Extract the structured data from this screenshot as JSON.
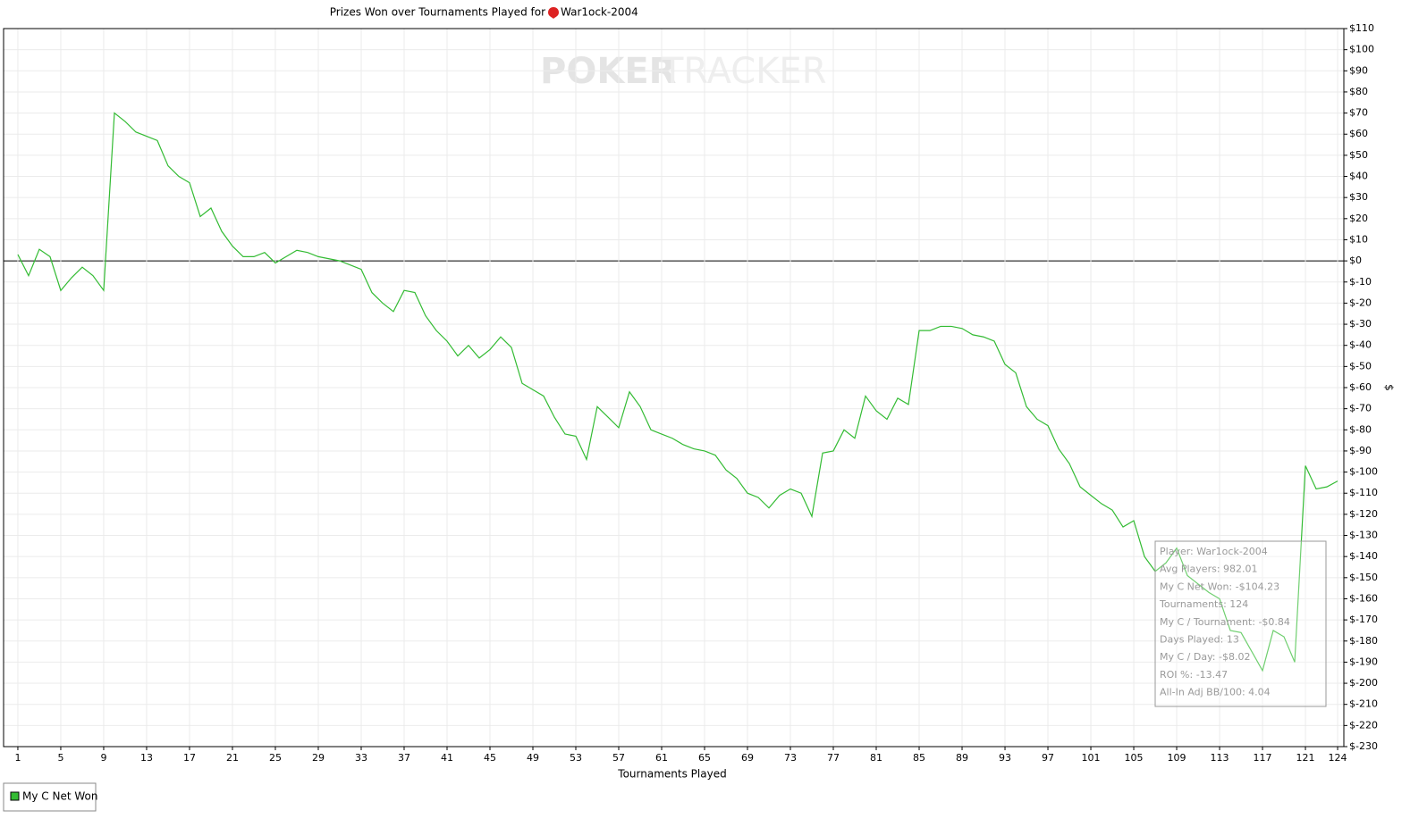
{
  "chart_data": {
    "type": "line",
    "title": "Prizes Won over Tournaments Played for",
    "player": "War1ock-2004",
    "watermark": [
      "POKER",
      "TRACKER"
    ],
    "x_label": "Tournaments Played",
    "y_label": "$",
    "x": [
      1,
      2,
      3,
      4,
      5,
      6,
      7,
      8,
      9,
      10,
      11,
      12,
      13,
      14,
      15,
      16,
      17,
      18,
      19,
      20,
      21,
      22,
      23,
      24,
      25,
      26,
      27,
      28,
      29,
      30,
      31,
      32,
      33,
      34,
      35,
      36,
      37,
      38,
      39,
      40,
      41,
      42,
      43,
      44,
      45,
      46,
      47,
      48,
      49,
      50,
      51,
      52,
      53,
      54,
      55,
      56,
      57,
      58,
      59,
      60,
      61,
      62,
      63,
      64,
      65,
      66,
      67,
      68,
      69,
      70,
      71,
      72,
      73,
      74,
      75,
      76,
      77,
      78,
      79,
      80,
      81,
      82,
      83,
      84,
      85,
      86,
      87,
      88,
      89,
      90,
      91,
      92,
      93,
      94,
      95,
      96,
      97,
      98,
      99,
      100,
      101,
      102,
      103,
      104,
      105,
      106,
      107,
      108,
      109,
      110,
      111,
      112,
      113,
      114,
      115,
      116,
      117,
      118,
      119,
      120,
      121,
      122,
      123,
      124
    ],
    "series": [
      {
        "name": "My C Net Won",
        "color": "#33bb33",
        "values": [
          3,
          -7,
          5.5,
          2,
          -14,
          -8,
          -3,
          -7,
          -14,
          70,
          66,
          61,
          59,
          57,
          45,
          40,
          37,
          21,
          25,
          14,
          7,
          2,
          2,
          4,
          -1,
          2,
          5,
          4,
          2,
          1,
          0,
          -2,
          -4,
          -15,
          -20,
          -24,
          -14,
          -15,
          -26,
          -33,
          -38,
          -45,
          -40,
          -46,
          -42,
          -36,
          -41,
          -58,
          -61,
          -64,
          -74,
          -82,
          -83,
          -94,
          -69,
          -74,
          -79,
          -62,
          -69,
          -80,
          -82,
          -84,
          -87,
          -89,
          -90,
          -92,
          -99,
          -103,
          -110,
          -112,
          -117,
          -111,
          -108,
          -110,
          -121,
          -91,
          -90,
          -80,
          -84,
          -64,
          -71,
          -75,
          -65,
          -68,
          -33,
          -33,
          -31,
          -31,
          -32,
          -35,
          -36,
          -38,
          -49,
          -53,
          -69,
          -75,
          -78,
          -89,
          -96,
          -107,
          -111,
          -115,
          -118,
          -126,
          -123,
          -140,
          -147,
          -143,
          -136,
          -149,
          -153,
          -157,
          -160,
          -175,
          -176,
          -185,
          -194,
          -175,
          -178,
          -190,
          -97,
          -108,
          -107,
          -104.23
        ]
      }
    ],
    "xlim": [
      -0.33,
      124.58
    ],
    "xticks": [
      1,
      5,
      9,
      13,
      17,
      21,
      25,
      29,
      33,
      37,
      41,
      45,
      49,
      53,
      57,
      61,
      65,
      69,
      73,
      77,
      81,
      85,
      89,
      93,
      97,
      101,
      105,
      109,
      113,
      117,
      121,
      124
    ],
    "ylim": [
      -230,
      110
    ],
    "yticks": [
      {
        "value": -230,
        "label": "$-230"
      },
      {
        "value": -220,
        "label": "$-220"
      },
      {
        "value": -210,
        "label": "$-210"
      },
      {
        "value": -200,
        "label": "$-200"
      },
      {
        "value": -190,
        "label": "$-190"
      },
      {
        "value": -180,
        "label": "$-180"
      },
      {
        "value": -170,
        "label": "$-170"
      },
      {
        "value": -160,
        "label": "$-160"
      },
      {
        "value": -150,
        "label": "$-150"
      },
      {
        "value": -140,
        "label": "$-140"
      },
      {
        "value": -130,
        "label": "$-130"
      },
      {
        "value": -120,
        "label": "$-120"
      },
      {
        "value": -110,
        "label": "$-110"
      },
      {
        "value": -100,
        "label": "$-100"
      },
      {
        "value": -90,
        "label": "$-90"
      },
      {
        "value": -80,
        "label": "$-80"
      },
      {
        "value": -70,
        "label": "$-70"
      },
      {
        "value": -60,
        "label": "$-60"
      },
      {
        "value": -50,
        "label": "$-50"
      },
      {
        "value": -40,
        "label": "$-40"
      },
      {
        "value": -30,
        "label": "$-30"
      },
      {
        "value": -20,
        "label": "$-20"
      },
      {
        "value": -10,
        "label": "$-10"
      },
      {
        "value": 0,
        "label": "$0"
      },
      {
        "value": 10,
        "label": "$10"
      },
      {
        "value": 20,
        "label": "$20"
      },
      {
        "value": 30,
        "label": "$30"
      },
      {
        "value": 40,
        "label": "$40"
      },
      {
        "value": 50,
        "label": "$50"
      },
      {
        "value": 60,
        "label": "$60"
      },
      {
        "value": 70,
        "label": "$70"
      },
      {
        "value": 80,
        "label": "$80"
      },
      {
        "value": 90,
        "label": "$90"
      },
      {
        "value": 100,
        "label": "$100"
      },
      {
        "value": 110,
        "label": "$110"
      }
    ],
    "grid": true,
    "info_box": [
      "Player: War1ock-2004",
      "Avg Players: 982.01",
      "My C Net Won: -$104.23",
      "Tournaments: 124",
      "My C / Tournament: -$0.84",
      "Days Played: 13",
      "My C / Day: -$8.02",
      "ROI %: -13.47",
      "All-In Adj BB/100: 4.04"
    ]
  }
}
